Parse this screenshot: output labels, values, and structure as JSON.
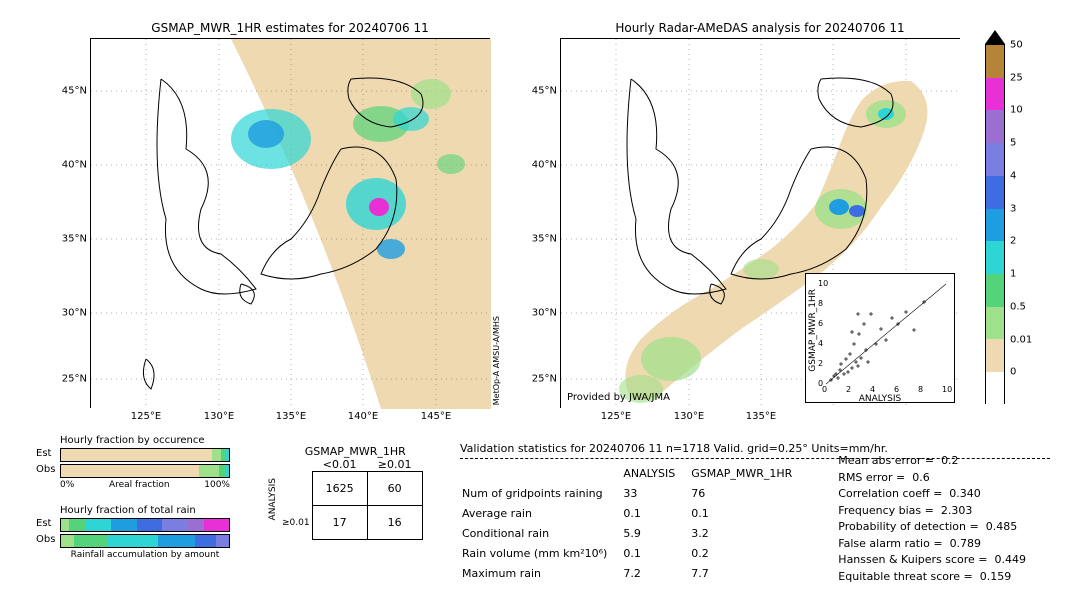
{
  "maps": {
    "left": {
      "title": "GSMAP_MWR_1HR estimates for 20240706 11",
      "x_ticks": [
        "125°E",
        "130°E",
        "135°E",
        "140°E",
        "145°E"
      ],
      "y_ticks": [
        "45°N",
        "40°N",
        "35°N",
        "30°N",
        "25°N"
      ],
      "credit": "MetOp-A\nAMSU-A/MHS"
    },
    "right": {
      "title": "Hourly Radar-AMeDAS analysis for 20240706 11",
      "x_ticks": [
        "125°E",
        "130°E",
        "135°E"
      ],
      "y_ticks": [
        "45°N",
        "40°N",
        "35°N",
        "30°N",
        "25°N"
      ],
      "provided": "Provided by JWA/JMA"
    }
  },
  "colorbar": {
    "labels": [
      "50",
      "25",
      "10",
      "5",
      "4",
      "3",
      "2",
      "1",
      "0.5",
      "0.01",
      "0"
    ],
    "colors": [
      "#b58438",
      "#e92fd6",
      "#9a6fd1",
      "#7a7ee0",
      "#3d6de0",
      "#1e9de0",
      "#2dd5d5",
      "#55d37a",
      "#9fe08a",
      "#efd9b0",
      "#ffffff"
    ]
  },
  "occurrence": {
    "title": "Hourly fraction by occurence",
    "row1_label": "Est",
    "row2_label": "Obs",
    "axis_left": "0%",
    "axis_center": "Areal fraction",
    "axis_right": "100%",
    "est_colors": [
      "#efd9b0",
      "#9fe08a",
      "#55d37a",
      "#2dd5d5"
    ],
    "est_fracs": [
      0.9,
      0.05,
      0.03,
      0.02
    ],
    "obs_colors": [
      "#efd9b0",
      "#9fe08a",
      "#55d37a",
      "#2dd5d5"
    ],
    "obs_fracs": [
      0.82,
      0.12,
      0.04,
      0.02
    ]
  },
  "totalrain": {
    "title": "Hourly fraction of total rain",
    "row1_label": "Est",
    "row2_label": "Obs",
    "est_colors": [
      "#9fe08a",
      "#55d37a",
      "#2dd5d5",
      "#1e9de0",
      "#3d6de0",
      "#7a7ee0",
      "#9a6fd1",
      "#e92fd6"
    ],
    "est_fracs": [
      0.05,
      0.1,
      0.15,
      0.15,
      0.15,
      0.15,
      0.1,
      0.15
    ],
    "obs_colors": [
      "#9fe08a",
      "#55d37a",
      "#2dd5d5",
      "#1e9de0",
      "#3d6de0",
      "#7a7ee0"
    ],
    "obs_fracs": [
      0.08,
      0.2,
      0.3,
      0.22,
      0.12,
      0.08
    ],
    "footer": "Rainfall accumulation by amount"
  },
  "contingency": {
    "title": "GSMAP_MWR_1HR",
    "col1": "<0.01",
    "col2": "≥0.01",
    "yaxis": "ANALYSIS",
    "cells": [
      [
        "1625",
        "60"
      ],
      [
        "17",
        "16"
      ]
    ],
    "ylow": "≥0.01"
  },
  "scatter": {
    "xlabel": "ANALYSIS",
    "ylabel": "GSMAP_MWR_1HR",
    "xmin": 0,
    "xmax": 10,
    "ticks": [
      "0",
      "2",
      "4",
      "6",
      "8",
      "10"
    ]
  },
  "validation": {
    "header": "Validation statistics for 20240706 11  n=1718 Valid. grid=0.25° Units=mm/hr.",
    "col_analysis": "ANALYSIS",
    "col_gsmap": "GSMAP_MWR_1HR",
    "rows": [
      {
        "label": "Num of gridpoints raining",
        "analysis": "33",
        "gsmap": "76"
      },
      {
        "label": "Average rain",
        "analysis": "0.1",
        "gsmap": "0.1"
      },
      {
        "label": "Conditional rain",
        "analysis": "5.9",
        "gsmap": "3.2"
      },
      {
        "label": "Rain volume (mm km²10⁶)",
        "analysis": "0.1",
        "gsmap": "0.2"
      },
      {
        "label": "Maximum rain",
        "analysis": "7.2",
        "gsmap": "7.7"
      }
    ],
    "metrics": [
      {
        "label": "Mean abs error =",
        "value": "0.2"
      },
      {
        "label": "RMS error =",
        "value": "0.6"
      },
      {
        "label": "Correlation coeff =",
        "value": "0.340"
      },
      {
        "label": "Frequency bias =",
        "value": "2.303"
      },
      {
        "label": "Probability of detection =",
        "value": "0.485"
      },
      {
        "label": "False alarm ratio =",
        "value": "0.789"
      },
      {
        "label": "Hanssen & Kuipers score =",
        "value": "0.449"
      },
      {
        "label": "Equitable threat score =",
        "value": "0.159"
      }
    ]
  },
  "style": {
    "swath_color": "#efd9b0",
    "land_stroke": "#000000",
    "grid_dot": "#666666"
  }
}
